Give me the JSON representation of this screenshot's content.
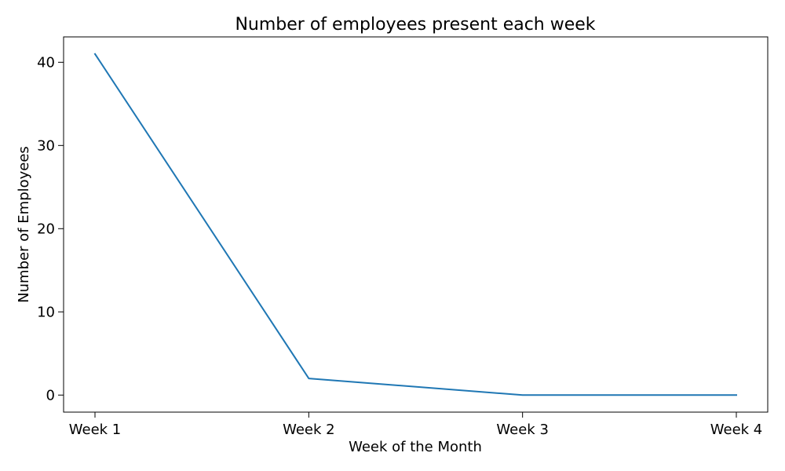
{
  "chart_data": {
    "type": "line",
    "title": "Number of employees present each week",
    "xlabel": "Week of the Month",
    "ylabel": "Number of Employees",
    "categories": [
      "Week 1",
      "Week 2",
      "Week 3",
      "Week 4"
    ],
    "series": [
      {
        "values": [
          41,
          2,
          0,
          0
        ],
        "color": "#1f77b4"
      }
    ],
    "ylim": [
      -2.05,
      43.05
    ],
    "yticks": [
      0,
      10,
      20,
      30,
      40
    ],
    "grid": false,
    "legend": "none"
  }
}
